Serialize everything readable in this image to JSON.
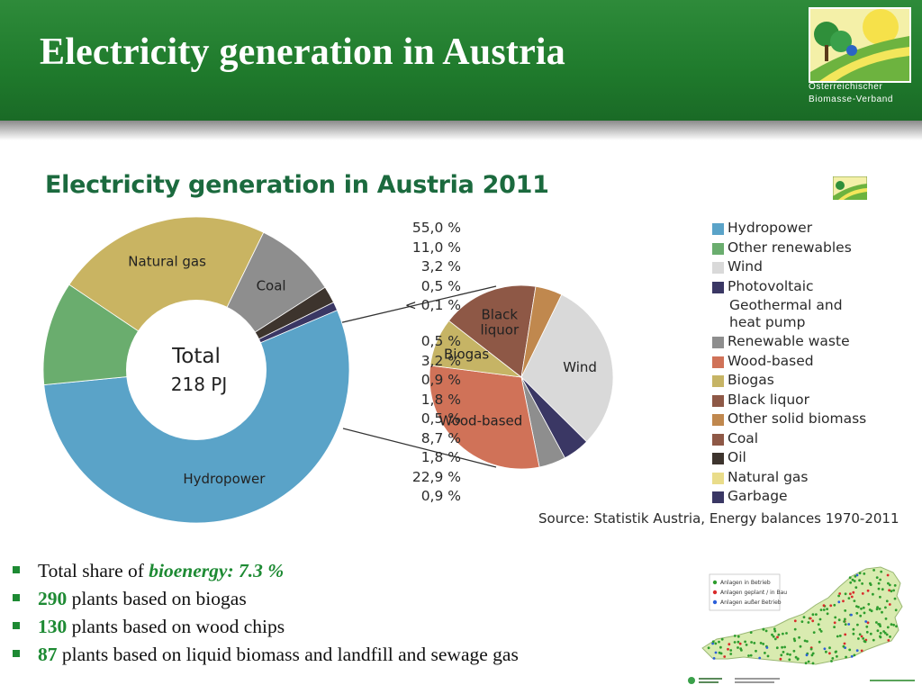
{
  "slide": {
    "title": "Electricity generation in Austria",
    "logo_line1": "Österreichischer",
    "logo_line2": "Biomasse-Verband"
  },
  "chart_data": {
    "type": "pie",
    "title": "Electricity generation in Austria 2011",
    "center_label": [
      "Total",
      "218 PJ"
    ],
    "main_pie": [
      {
        "name": "Hydropower",
        "value": 55.0,
        "color": "#5aa3c8",
        "label": "Hydropower"
      },
      {
        "name": "Other renewables",
        "value": 11.0,
        "color": "#6aad6e",
        "label": ""
      },
      {
        "name": "Natural gas",
        "value": 22.9,
        "color": "#c9b462",
        "label": "Natural gas"
      },
      {
        "name": "Coal",
        "value": 8.7,
        "color": "#8e8e8e",
        "label": "Coal"
      },
      {
        "name": "Oil",
        "value": 1.8,
        "color": "#3d342d",
        "label": ""
      },
      {
        "name": "Garbage",
        "value": 0.9,
        "color": "#3a3764",
        "label": ""
      }
    ],
    "detail_pie": [
      {
        "name": "Wind",
        "value": 3.2,
        "color": "#d9d9d9",
        "label": "Wind"
      },
      {
        "name": "Photovoltaic",
        "value": 0.5,
        "color": "#3a3764",
        "label": ""
      },
      {
        "name": "Renewable waste",
        "value": 0.5,
        "color": "#8e8e8e",
        "label": ""
      },
      {
        "name": "Wood-based",
        "value": 3.2,
        "color": "#d07258",
        "label": "Wood-based"
      },
      {
        "name": "Biogas",
        "value": 0.9,
        "color": "#c6b465",
        "label": "Biogas"
      },
      {
        "name": "Black liquor",
        "value": 1.8,
        "color": "#8e5846",
        "label": "Black liquor"
      },
      {
        "name": "Other solid biomass",
        "value": 0.5,
        "color": "#c0884e",
        "label": ""
      }
    ],
    "legend": [
      {
        "pct": "55,0 %",
        "name": "Hydropower",
        "color": "#5aa3c8"
      },
      {
        "pct": "11,0 %",
        "name": "Other renewables",
        "color": "#6aad6e"
      },
      {
        "pct": "3,2 %",
        "name": "Wind",
        "color": "#d9d9d9"
      },
      {
        "pct": "0,5 %",
        "name": "Photovoltaic",
        "color": "#3a3764"
      },
      {
        "pct": "< 0,1 %",
        "name": "Geothermal and heat pump",
        "color": ""
      },
      {
        "pct": "0,5 %",
        "name": "Renewable waste",
        "color": "#8e8e8e"
      },
      {
        "pct": "3,2 %",
        "name": "Wood-based",
        "color": "#d07258"
      },
      {
        "pct": "0,9 %",
        "name": "Biogas",
        "color": "#c6b465"
      },
      {
        "pct": "1,8 %",
        "name": "Black liquor",
        "color": "#8e5846"
      },
      {
        "pct": "0,5 %",
        "name": "Other solid biomass",
        "color": "#c0884e"
      },
      {
        "pct": "8,7 %",
        "name": "Coal",
        "color": "#8e5846"
      },
      {
        "pct": "1,8 %",
        "name": "Oil",
        "color": "#3d342d"
      },
      {
        "pct": "22,9 %",
        "name": "Natural gas",
        "color": "#e9dc8a"
      },
      {
        "pct": "0,9 %",
        "name": "Garbage",
        "color": "#3a3764"
      }
    ],
    "source": "Source: Statistik Austria, Energy balances 1970-2011"
  },
  "bullets": [
    {
      "pre": "Total share of ",
      "em": "bioenergy: 7.3 %",
      "post": ""
    },
    {
      "pre": "",
      "em": "290",
      "post": " plants based on biogas"
    },
    {
      "pre": "",
      "em": "130",
      "post": " plants based on wood chips"
    },
    {
      "pre": "",
      "em": "87",
      "post": " plants based on liquid biomass and landfill and sewage gas"
    }
  ],
  "map": {
    "legend_items": [
      {
        "label": "Anlagen in Betrieb",
        "color": "#2e9d2e"
      },
      {
        "label": "Anlagen geplant / in Bau",
        "color": "#d92b2b"
      },
      {
        "label": "Anlagen außer Betrieb",
        "color": "#2b5fd9"
      }
    ]
  }
}
